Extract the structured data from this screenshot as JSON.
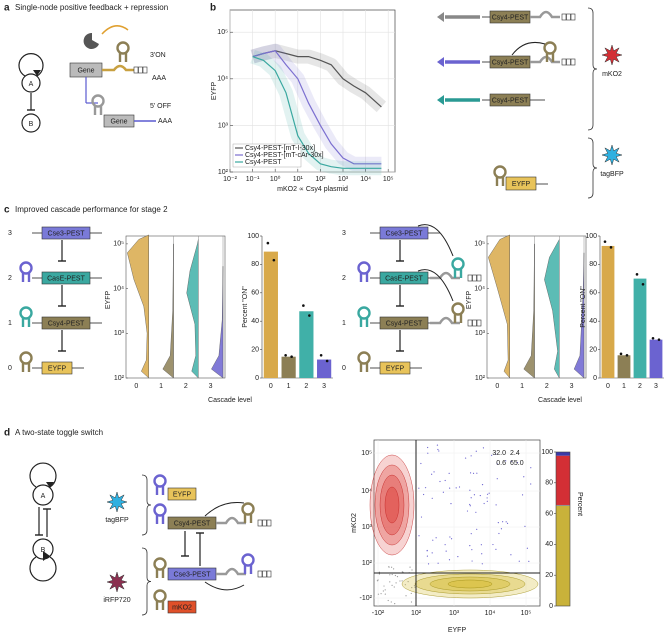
{
  "panels": {
    "a": {
      "label": "a",
      "title": "Single-node positive feedback + repression",
      "nodes": [
        "A",
        "B"
      ],
      "genes": [
        "Gene",
        "Gene"
      ],
      "on": "3'ON",
      "off": "5' OFF",
      "tails": [
        "AAA",
        "AAA"
      ]
    },
    "b": {
      "label": "b",
      "constructs": [
        "Csy4-PEST",
        "Csy4-PEST",
        "Csy4-PEST"
      ],
      "reporter": "EYFP",
      "stars": [
        "mKO2",
        "tagBFP"
      ]
    },
    "c": {
      "label": "c",
      "title": "Improved cascade performance for stage 2",
      "levels": [
        "3",
        "2",
        "1",
        "0"
      ],
      "left": [
        "Cse3-PEST",
        "CasE-PEST",
        "Csy4-PEST",
        "EYFP"
      ],
      "right": [
        "Cse3-PEST",
        "CasE-PEST",
        "Csy4-PEST",
        "EYFP"
      ],
      "violins": [
        {
          "ylabel": "EYFP",
          "ylim": [
            100,
            150000
          ],
          "yticks": [
            {
              "value": 100,
              "label": "10²"
            },
            {
              "value": 1000,
              "label": "10³"
            },
            {
              "value": 10000,
              "label": "10⁴"
            },
            {
              "value": 100000,
              "label": "10⁵"
            }
          ],
          "categories": [
            "0",
            "1",
            "2",
            "3"
          ]
        },
        {
          "ylabel": "EYFP",
          "ylim": [
            100,
            150000
          ],
          "yticks": [
            {
              "value": 100,
              "label": "10²"
            },
            {
              "value": 1000,
              "label": "10³"
            },
            {
              "value": 10000,
              "label": "10⁴"
            },
            {
              "value": 100000,
              "label": "10⁵"
            }
          ],
          "categories": [
            "0",
            "1",
            "2",
            "3"
          ]
        }
      ]
    },
    "d": {
      "label": "d",
      "title": "A two-state toggle switch",
      "nodes": [
        "A",
        "B"
      ],
      "stars": [
        "tagBFP",
        "iRFP720"
      ],
      "parts": [
        "EYFP",
        "Csy4-PEST",
        "Cse3-PEST",
        "mKO2"
      ],
      "facs": {
        "xlabel": "EYFP",
        "ylabel": "mKO2",
        "xticks": [
          "-10²",
          "10²",
          "10³",
          "10⁴",
          "10⁵"
        ],
        "yticks": [
          "-10²",
          "10²",
          "10³",
          "10⁴",
          "10⁵"
        ]
      }
    }
  },
  "chart_data": [
    {
      "type": "line",
      "xlabel": "mKO2 ∝ Csy4 plasmid",
      "ylabel": "EYFP",
      "xscale": "log",
      "yscale": "log",
      "grid": true,
      "legend": "lower left",
      "xlim": [
        0.01,
        200000
      ],
      "ylim": [
        100,
        300000
      ],
      "xticks": [
        {
          "value": 0.01,
          "label": "10⁻²"
        },
        {
          "value": 0.1,
          "label": "10⁻¹"
        },
        {
          "value": 1,
          "label": "10⁰"
        },
        {
          "value": 10,
          "label": "10¹"
        },
        {
          "value": 100,
          "label": "10²"
        },
        {
          "value": 1000,
          "label": "10³"
        },
        {
          "value": 10000,
          "label": "10⁴"
        },
        {
          "value": 100000,
          "label": "10⁵"
        }
      ],
      "yticks": [
        {
          "value": 100,
          "label": "10²"
        },
        {
          "value": 1000,
          "label": "10³"
        },
        {
          "value": 10000,
          "label": "10⁴"
        },
        {
          "value": 100000,
          "label": "10⁵"
        }
      ],
      "x": [
        0.1,
        0.3,
        1,
        3,
        10,
        30,
        100,
        300,
        1000,
        3000,
        10000,
        50000
      ],
      "series": [
        {
          "name": "Csy4-PEST-[mT-I-30x]",
          "color": "#555555",
          "values": [
            30000,
            35000,
            40000,
            35000,
            30000,
            30000,
            25000,
            20000,
            10000,
            7000,
            5000,
            2500
          ]
        },
        {
          "name": "Csy4-PEST-[mT-cAr-30x]",
          "color": "#7b6fd0",
          "values": [
            30000,
            35000,
            40000,
            20000,
            10000,
            3000,
            1000,
            400,
            200,
            150,
            150,
            150
          ]
        },
        {
          "name": "Csy4-PEST",
          "color": "#3aa8a0",
          "values": [
            30000,
            25000,
            15000,
            5000,
            600,
            250,
            150,
            130,
            120,
            120,
            120,
            120
          ]
        }
      ]
    },
    {
      "type": "bar",
      "ylabel": "Percent \"ON\"",
      "xlabel": "Cascade level",
      "categories": [
        "0",
        "1",
        "2",
        "3"
      ],
      "values": [
        89,
        15,
        47,
        13
      ],
      "colors": [
        "#d8a94a",
        "#8c7f55",
        "#40b0a8",
        "#6b63d0"
      ],
      "replicates": [
        [
          95,
          83
        ],
        [
          16,
          15
        ],
        [
          51,
          44
        ],
        [
          16,
          12
        ]
      ],
      "ylim": [
        0,
        100
      ],
      "yticks": [
        0,
        20,
        40,
        60,
        80,
        100
      ]
    },
    {
      "type": "bar",
      "ylabel": "Percent \"ON\"",
      "xlabel": "Cascade level",
      "categories": [
        "0",
        "1",
        "2",
        "3"
      ],
      "values": [
        93,
        16,
        70,
        27
      ],
      "colors": [
        "#d8a94a",
        "#8c7f55",
        "#40b0a8",
        "#6b63d0"
      ],
      "replicates": [
        [
          96,
          92
        ],
        [
          17,
          16
        ],
        [
          73,
          66
        ],
        [
          28,
          27
        ]
      ],
      "ylim": [
        0,
        100
      ],
      "yticks": [
        0,
        20,
        40,
        60,
        80,
        100
      ]
    },
    {
      "type": "stacked-bar",
      "ylabel": "Percent",
      "ylim": [
        0,
        100
      ],
      "yticks": [
        0,
        20,
        40,
        60,
        80,
        100
      ],
      "categories": [
        null
      ],
      "series": [
        {
          "color": "#c9b23a",
          "values": [
            65.0
          ],
          "value_labels": [
            "65.0"
          ]
        },
        {
          "color": "#888888",
          "values": [
            0.6
          ],
          "value_labels": [
            "0.6"
          ]
        },
        {
          "color": "#d32f35",
          "values": [
            32.0
          ],
          "value_labels": [
            "32.0"
          ]
        },
        {
          "color": "#3a3aa8",
          "values": [
            2.4
          ],
          "value_labels": [
            "2.4"
          ]
        }
      ]
    }
  ]
}
